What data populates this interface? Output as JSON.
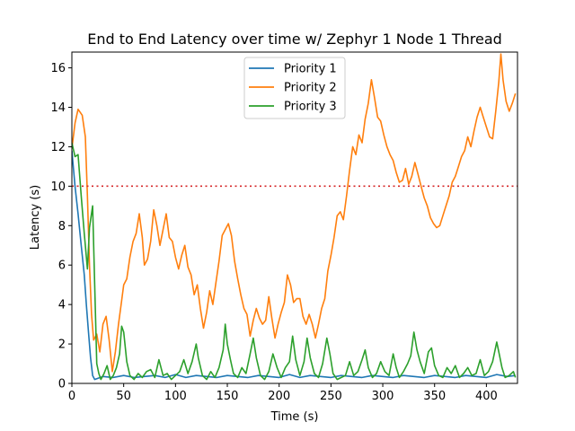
{
  "chart_data": {
    "type": "line",
    "title": "End to End Latency over time w/ Zephyr 1 Node 1 Thread",
    "xlabel": "Time (s)",
    "ylabel": "Latency (s)",
    "xlim": [
      0,
      430
    ],
    "ylim": [
      0,
      16.8
    ],
    "xticks": [
      0,
      50,
      100,
      150,
      200,
      250,
      300,
      350,
      400
    ],
    "yticks": [
      0,
      2,
      4,
      6,
      8,
      10,
      12,
      14,
      16
    ],
    "grid": false,
    "legend_position": "top-center",
    "reference_line": {
      "y": 10,
      "color": "#d62728",
      "style": "dotted"
    },
    "series": [
      {
        "name": "Priority 1",
        "color": "#1f77b4",
        "points": [
          [
            0,
            11.8
          ],
          [
            3,
            10
          ],
          [
            6,
            8.6
          ],
          [
            9,
            7
          ],
          [
            12,
            5.5
          ],
          [
            14,
            4
          ],
          [
            16,
            2.6
          ],
          [
            18,
            1.3
          ],
          [
            20,
            0.4
          ],
          [
            22,
            0.2
          ],
          [
            30,
            0.35
          ],
          [
            40,
            0.3
          ],
          [
            50,
            0.4
          ],
          [
            60,
            0.3
          ],
          [
            70,
            0.35
          ],
          [
            80,
            0.4
          ],
          [
            90,
            0.3
          ],
          [
            100,
            0.45
          ],
          [
            110,
            0.3
          ],
          [
            120,
            0.4
          ],
          [
            130,
            0.35
          ],
          [
            140,
            0.3
          ],
          [
            150,
            0.4
          ],
          [
            160,
            0.35
          ],
          [
            170,
            0.3
          ],
          [
            180,
            0.4
          ],
          [
            190,
            0.35
          ],
          [
            200,
            0.3
          ],
          [
            210,
            0.45
          ],
          [
            220,
            0.3
          ],
          [
            230,
            0.4
          ],
          [
            240,
            0.35
          ],
          [
            250,
            0.3
          ],
          [
            260,
            0.4
          ],
          [
            270,
            0.35
          ],
          [
            280,
            0.3
          ],
          [
            290,
            0.4
          ],
          [
            300,
            0.35
          ],
          [
            310,
            0.3
          ],
          [
            320,
            0.4
          ],
          [
            330,
            0.35
          ],
          [
            340,
            0.3
          ],
          [
            350,
            0.4
          ],
          [
            360,
            0.35
          ],
          [
            370,
            0.3
          ],
          [
            380,
            0.4
          ],
          [
            390,
            0.35
          ],
          [
            400,
            0.3
          ],
          [
            410,
            0.45
          ],
          [
            420,
            0.35
          ],
          [
            428,
            0.4
          ]
        ]
      },
      {
        "name": "Priority 2",
        "color": "#ff7f0e",
        "points": [
          [
            0,
            11.9
          ],
          [
            3,
            13.2
          ],
          [
            6,
            13.9
          ],
          [
            10,
            13.6
          ],
          [
            13,
            12.5
          ],
          [
            15,
            9.5
          ],
          [
            17,
            6
          ],
          [
            19,
            3.5
          ],
          [
            21,
            2.2
          ],
          [
            24,
            2.5
          ],
          [
            27,
            1.6
          ],
          [
            30,
            3
          ],
          [
            33,
            3.4
          ],
          [
            36,
            2.2
          ],
          [
            39,
            0.6
          ],
          [
            42,
            1.6
          ],
          [
            45,
            3
          ],
          [
            48,
            4.2
          ],
          [
            50,
            5
          ],
          [
            53,
            5.3
          ],
          [
            56,
            6.4
          ],
          [
            59,
            7.2
          ],
          [
            62,
            7.6
          ],
          [
            65,
            8.6
          ],
          [
            68,
            7.4
          ],
          [
            70,
            6
          ],
          [
            73,
            6.3
          ],
          [
            76,
            7.2
          ],
          [
            79,
            8.8
          ],
          [
            82,
            8
          ],
          [
            85,
            7
          ],
          [
            88,
            7.8
          ],
          [
            91,
            8.6
          ],
          [
            94,
            7.4
          ],
          [
            97,
            7.2
          ],
          [
            100,
            6.4
          ],
          [
            103,
            5.8
          ],
          [
            106,
            6.5
          ],
          [
            109,
            7
          ],
          [
            112,
            5.9
          ],
          [
            115,
            5.5
          ],
          [
            118,
            4.5
          ],
          [
            121,
            5
          ],
          [
            124,
            3.8
          ],
          [
            127,
            2.8
          ],
          [
            130,
            3.6
          ],
          [
            133,
            4.7
          ],
          [
            136,
            4
          ],
          [
            139,
            5.1
          ],
          [
            142,
            6.2
          ],
          [
            145,
            7.5
          ],
          [
            148,
            7.8
          ],
          [
            151,
            8.1
          ],
          [
            154,
            7.5
          ],
          [
            157,
            6.2
          ],
          [
            160,
            5.3
          ],
          [
            163,
            4.5
          ],
          [
            166,
            3.8
          ],
          [
            169,
            3.5
          ],
          [
            172,
            2.4
          ],
          [
            175,
            3.2
          ],
          [
            178,
            3.8
          ],
          [
            181,
            3.3
          ],
          [
            184,
            3
          ],
          [
            187,
            3.2
          ],
          [
            190,
            4.4
          ],
          [
            193,
            3.3
          ],
          [
            196,
            2.3
          ],
          [
            199,
            3
          ],
          [
            202,
            3.6
          ],
          [
            205,
            4.1
          ],
          [
            208,
            5.5
          ],
          [
            211,
            5
          ],
          [
            214,
            4.1
          ],
          [
            217,
            4.3
          ],
          [
            220,
            4.3
          ],
          [
            223,
            3.4
          ],
          [
            226,
            3
          ],
          [
            229,
            3.5
          ],
          [
            232,
            3
          ],
          [
            235,
            2.3
          ],
          [
            238,
            3
          ],
          [
            241,
            3.8
          ],
          [
            244,
            4.3
          ],
          [
            247,
            5.7
          ],
          [
            250,
            6.5
          ],
          [
            253,
            7.4
          ],
          [
            256,
            8.5
          ],
          [
            259,
            8.7
          ],
          [
            262,
            8.3
          ],
          [
            265,
            9.5
          ],
          [
            268,
            10.8
          ],
          [
            271,
            12
          ],
          [
            274,
            11.6
          ],
          [
            277,
            12.6
          ],
          [
            280,
            12.2
          ],
          [
            283,
            13.4
          ],
          [
            286,
            14.2
          ],
          [
            289,
            15.4
          ],
          [
            292,
            14.5
          ],
          [
            295,
            13.5
          ],
          [
            298,
            13.3
          ],
          [
            301,
            12.6
          ],
          [
            304,
            12
          ],
          [
            307,
            11.6
          ],
          [
            310,
            11.3
          ],
          [
            313,
            10.7
          ],
          [
            316,
            10.2
          ],
          [
            319,
            10.3
          ],
          [
            322,
            10.9
          ],
          [
            325,
            10.1
          ],
          [
            328,
            10.5
          ],
          [
            331,
            11.2
          ],
          [
            334,
            10.6
          ],
          [
            337,
            10
          ],
          [
            340,
            9.4
          ],
          [
            343,
            9
          ],
          [
            346,
            8.4
          ],
          [
            349,
            8.1
          ],
          [
            352,
            7.9
          ],
          [
            355,
            8
          ],
          [
            358,
            8.5
          ],
          [
            361,
            9
          ],
          [
            364,
            9.5
          ],
          [
            367,
            10.2
          ],
          [
            370,
            10.5
          ],
          [
            373,
            11
          ],
          [
            376,
            11.5
          ],
          [
            379,
            11.8
          ],
          [
            382,
            12.5
          ],
          [
            385,
            12
          ],
          [
            388,
            12.8
          ],
          [
            391,
            13.5
          ],
          [
            394,
            14
          ],
          [
            397,
            13.5
          ],
          [
            400,
            13
          ],
          [
            403,
            12.5
          ],
          [
            406,
            12.4
          ],
          [
            409,
            13.8
          ],
          [
            412,
            15.3
          ],
          [
            414,
            16.7
          ],
          [
            416,
            15.4
          ],
          [
            419,
            14.3
          ],
          [
            422,
            13.8
          ],
          [
            425,
            14.2
          ],
          [
            428,
            14.7
          ]
        ]
      },
      {
        "name": "Priority 3",
        "color": "#2ca02c",
        "points": [
          [
            0,
            12.2
          ],
          [
            3,
            11.5
          ],
          [
            6,
            11.6
          ],
          [
            9,
            9.5
          ],
          [
            12,
            7.6
          ],
          [
            15,
            5.8
          ],
          [
            17,
            7.9
          ],
          [
            20,
            9
          ],
          [
            22,
            5
          ],
          [
            24,
            1
          ],
          [
            26,
            0.5
          ],
          [
            28,
            0.2
          ],
          [
            31,
            0.5
          ],
          [
            34,
            0.9
          ],
          [
            37,
            0.2
          ],
          [
            40,
            0.4
          ],
          [
            43,
            0.8
          ],
          [
            46,
            1.5
          ],
          [
            48,
            2.9
          ],
          [
            50,
            2.6
          ],
          [
            53,
            1.1
          ],
          [
            56,
            0.4
          ],
          [
            60,
            0.2
          ],
          [
            64,
            0.5
          ],
          [
            68,
            0.3
          ],
          [
            72,
            0.6
          ],
          [
            76,
            0.7
          ],
          [
            80,
            0.3
          ],
          [
            84,
            1.2
          ],
          [
            88,
            0.4
          ],
          [
            92,
            0.5
          ],
          [
            96,
            0.2
          ],
          [
            100,
            0.4
          ],
          [
            104,
            0.6
          ],
          [
            108,
            1.2
          ],
          [
            112,
            0.5
          ],
          [
            116,
            1.1
          ],
          [
            120,
            2
          ],
          [
            122,
            1.3
          ],
          [
            126,
            0.4
          ],
          [
            130,
            0.2
          ],
          [
            134,
            0.6
          ],
          [
            138,
            0.3
          ],
          [
            142,
            0.8
          ],
          [
            146,
            1.7
          ],
          [
            148,
            3
          ],
          [
            150,
            2
          ],
          [
            153,
            1.2
          ],
          [
            156,
            0.5
          ],
          [
            160,
            0.3
          ],
          [
            164,
            0.8
          ],
          [
            168,
            0.5
          ],
          [
            172,
            1.5
          ],
          [
            175,
            2.3
          ],
          [
            178,
            1.3
          ],
          [
            182,
            0.4
          ],
          [
            186,
            0.2
          ],
          [
            190,
            0.6
          ],
          [
            194,
            1.5
          ],
          [
            198,
            0.8
          ],
          [
            202,
            0.3
          ],
          [
            206,
            0.8
          ],
          [
            210,
            1.1
          ],
          [
            213,
            2.4
          ],
          [
            216,
            1.2
          ],
          [
            220,
            0.4
          ],
          [
            224,
            1.1
          ],
          [
            227,
            2.3
          ],
          [
            230,
            1.3
          ],
          [
            234,
            0.5
          ],
          [
            238,
            0.3
          ],
          [
            242,
            1
          ],
          [
            246,
            2.3
          ],
          [
            249,
            1.5
          ],
          [
            252,
            0.5
          ],
          [
            256,
            0.2
          ],
          [
            260,
            0.3
          ],
          [
            264,
            0.4
          ],
          [
            268,
            1.1
          ],
          [
            272,
            0.4
          ],
          [
            276,
            0.6
          ],
          [
            280,
            1.2
          ],
          [
            283,
            1.7
          ],
          [
            286,
            0.8
          ],
          [
            290,
            0.3
          ],
          [
            294,
            0.5
          ],
          [
            298,
            1.1
          ],
          [
            302,
            0.6
          ],
          [
            306,
            0.4
          ],
          [
            310,
            1.5
          ],
          [
            313,
            0.8
          ],
          [
            316,
            0.3
          ],
          [
            320,
            0.6
          ],
          [
            324,
            1
          ],
          [
            327,
            1.4
          ],
          [
            330,
            2.6
          ],
          [
            333,
            1.7
          ],
          [
            336,
            1.1
          ],
          [
            340,
            0.5
          ],
          [
            344,
            1.6
          ],
          [
            347,
            1.8
          ],
          [
            350,
            0.9
          ],
          [
            354,
            0.4
          ],
          [
            358,
            0.3
          ],
          [
            362,
            0.8
          ],
          [
            366,
            0.5
          ],
          [
            370,
            0.9
          ],
          [
            374,
            0.3
          ],
          [
            378,
            0.5
          ],
          [
            382,
            0.8
          ],
          [
            386,
            0.4
          ],
          [
            390,
            0.5
          ],
          [
            394,
            1.2
          ],
          [
            398,
            0.4
          ],
          [
            402,
            0.6
          ],
          [
            406,
            1.1
          ],
          [
            410,
            2.1
          ],
          [
            412,
            1.6
          ],
          [
            415,
            0.8
          ],
          [
            418,
            0.3
          ],
          [
            422,
            0.4
          ],
          [
            426,
            0.6
          ],
          [
            428,
            0.3
          ]
        ]
      }
    ]
  }
}
